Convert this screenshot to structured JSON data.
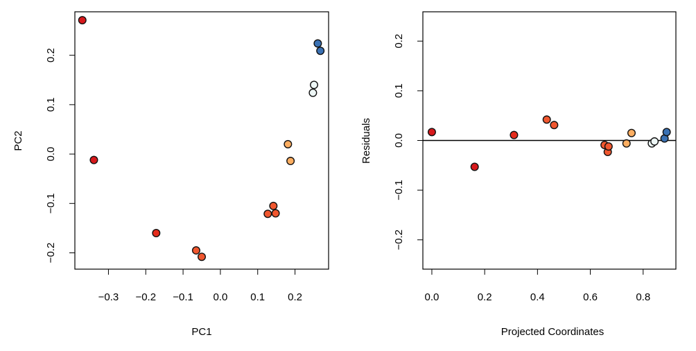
{
  "chart_data": [
    {
      "type": "scatter",
      "title": "",
      "xlabel": "PC1",
      "ylabel": "PC2",
      "xlim": [
        -0.39,
        0.29
      ],
      "ylim": [
        -0.233,
        0.288
      ],
      "xticks": [
        -0.3,
        -0.2,
        -0.1,
        0.0,
        0.1,
        0.2
      ],
      "xtick_labels": [
        "−0.3",
        "−0.2",
        "−0.1",
        "0.0",
        "0.1",
        "0.2"
      ],
      "yticks": [
        -0.2,
        -0.1,
        0.0,
        0.1,
        0.2
      ],
      "ytick_labels": [
        "−0.2",
        "−0.1",
        "0.0",
        "0.1",
        "0.2"
      ],
      "grid": false,
      "points": [
        {
          "x": -0.37,
          "y": 0.271,
          "color": "#d7191c"
        },
        {
          "x": -0.339,
          "y": -0.012,
          "color": "#d7191c"
        },
        {
          "x": -0.172,
          "y": -0.16,
          "color": "#e52c1c"
        },
        {
          "x": -0.065,
          "y": -0.195,
          "color": "#f0572f"
        },
        {
          "x": -0.05,
          "y": -0.208,
          "color": "#f0572f"
        },
        {
          "x": 0.127,
          "y": -0.121,
          "color": "#f0572f"
        },
        {
          "x": 0.142,
          "y": -0.105,
          "color": "#f0572f"
        },
        {
          "x": 0.148,
          "y": -0.12,
          "color": "#f0572f"
        },
        {
          "x": 0.181,
          "y": 0.02,
          "color": "#fdae61"
        },
        {
          "x": 0.188,
          "y": -0.014,
          "color": "#fdae61"
        },
        {
          "x": 0.251,
          "y": 0.14,
          "color": "#eef7f6"
        },
        {
          "x": 0.248,
          "y": 0.124,
          "color": "#eef7f6"
        },
        {
          "x": 0.261,
          "y": 0.224,
          "color": "#3a71b3"
        },
        {
          "x": 0.268,
          "y": 0.209,
          "color": "#3a71b3"
        }
      ]
    },
    {
      "type": "scatter",
      "title": "",
      "xlabel": "Projected Coordinates",
      "ylabel": "Residuals",
      "xlim": [
        -0.034,
        0.924
      ],
      "ylim": [
        -0.259,
        0.259
      ],
      "xticks": [
        0.0,
        0.2,
        0.4,
        0.6,
        0.8
      ],
      "xtick_labels": [
        "0.0",
        "0.2",
        "0.4",
        "0.6",
        "0.8"
      ],
      "yticks": [
        -0.2,
        -0.1,
        0.0,
        0.1,
        0.2
      ],
      "ytick_labels": [
        "−0.2",
        "−0.1",
        "0.0",
        "0.1",
        "0.2"
      ],
      "grid": false,
      "hline": 0,
      "points": [
        {
          "x": 0.0,
          "y": 0.017,
          "color": "#d7191c"
        },
        {
          "x": 0.162,
          "y": -0.053,
          "color": "#d7191c"
        },
        {
          "x": 0.311,
          "y": 0.011,
          "color": "#e52c1c"
        },
        {
          "x": 0.435,
          "y": 0.042,
          "color": "#f0572f"
        },
        {
          "x": 0.463,
          "y": 0.031,
          "color": "#f0572f"
        },
        {
          "x": 0.654,
          "y": -0.009,
          "color": "#f0572f"
        },
        {
          "x": 0.666,
          "y": -0.023,
          "color": "#f0572f"
        },
        {
          "x": 0.669,
          "y": -0.012,
          "color": "#f0572f"
        },
        {
          "x": 0.737,
          "y": -0.006,
          "color": "#fdae61"
        },
        {
          "x": 0.756,
          "y": 0.015,
          "color": "#fdae61"
        },
        {
          "x": 0.833,
          "y": -0.006,
          "color": "#eef7f6"
        },
        {
          "x": 0.843,
          "y": -0.002,
          "color": "#eef7f6"
        },
        {
          "x": 0.881,
          "y": 0.004,
          "color": "#3a71b3"
        },
        {
          "x": 0.889,
          "y": 0.017,
          "color": "#3a71b3"
        }
      ]
    }
  ]
}
